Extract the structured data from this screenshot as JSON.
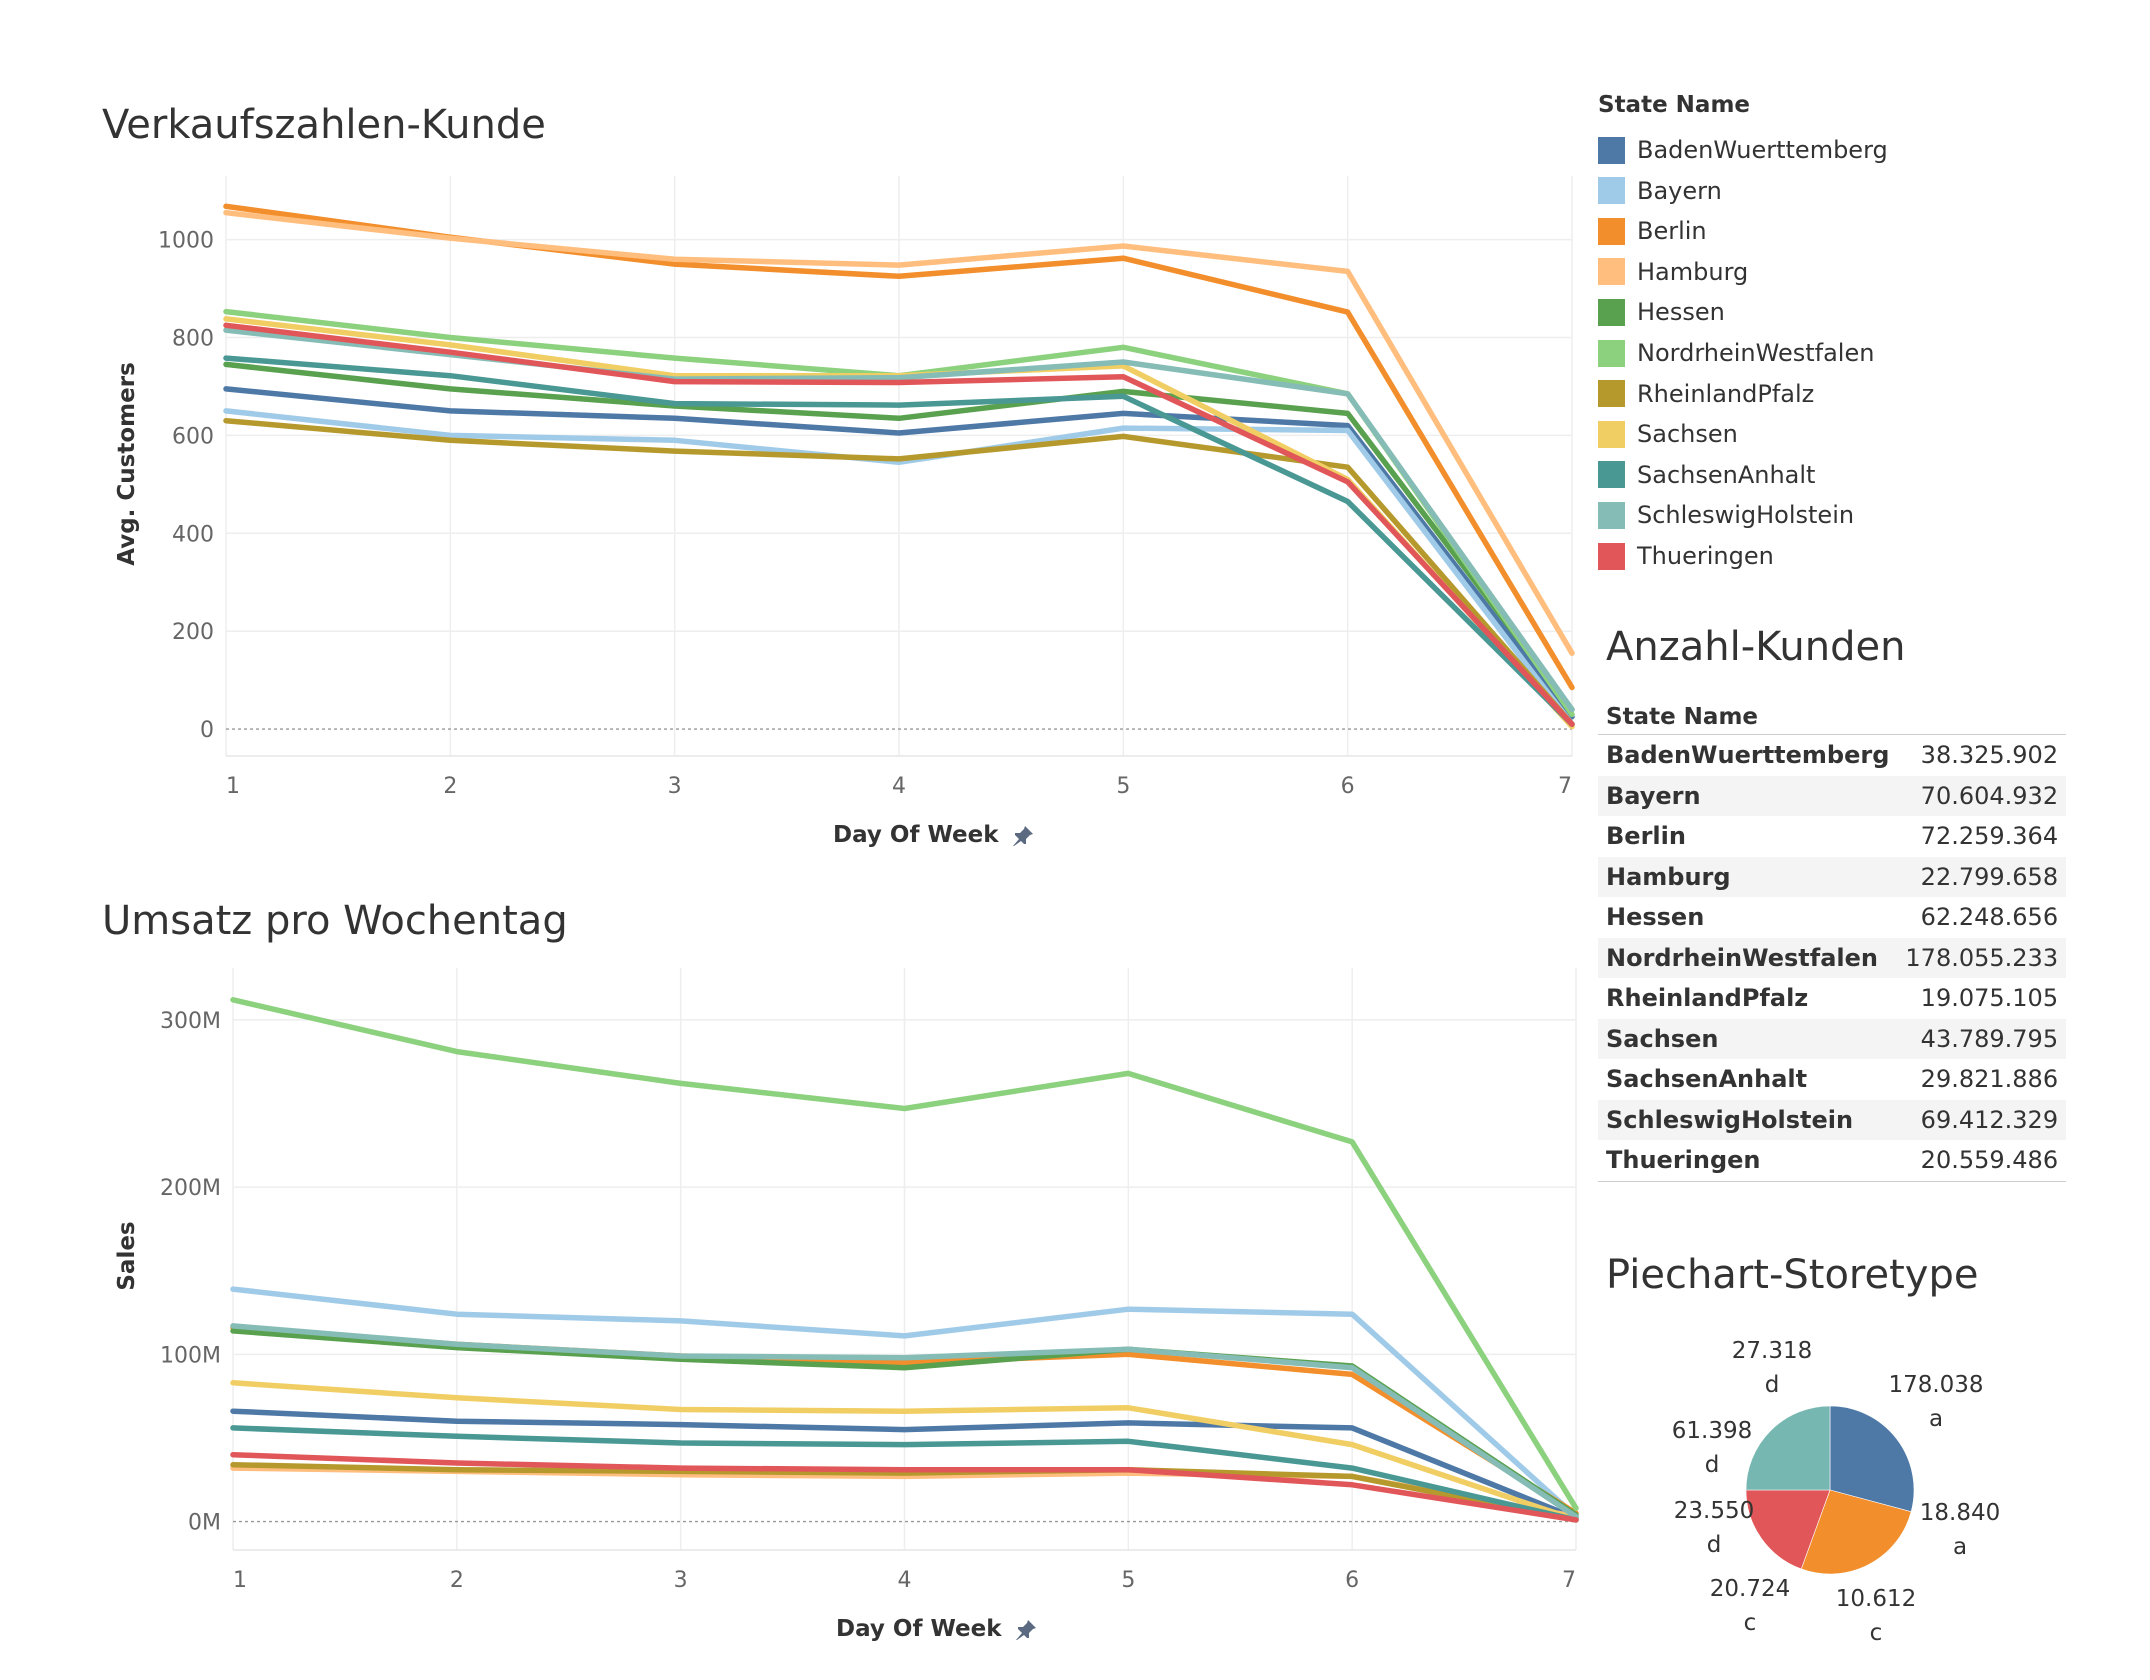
{
  "colors": {
    "BadenWuerttemberg": "#4e79a7",
    "Bayern": "#a0cbe8",
    "Berlin": "#f28e2b",
    "Hamburg": "#ffbe7d",
    "Hessen": "#59a14f",
    "NordrheinWestfalen": "#8cd17d",
    "RheinlandPfalz": "#b6992d",
    "Sachsen": "#f1ce63",
    "SachsenAnhalt": "#499894",
    "SchleswigHolstein": "#86bcb6",
    "Thueringen": "#e15759"
  },
  "legend": {
    "title": "State Name",
    "items": [
      "BadenWuerttemberg",
      "Bayern",
      "Berlin",
      "Hamburg",
      "Hessen",
      "NordrheinWestfalen",
      "RheinlandPfalz",
      "Sachsen",
      "SachsenAnhalt",
      "SchleswigHolstein",
      "Thueringen"
    ]
  },
  "table": {
    "title": "Anzahl-Kunden",
    "header": "State Name",
    "rows": [
      {
        "name": "BadenWuerttemberg",
        "value": "38.325.902"
      },
      {
        "name": "Bayern",
        "value": "70.604.932"
      },
      {
        "name": "Berlin",
        "value": "72.259.364"
      },
      {
        "name": "Hamburg",
        "value": "22.799.658"
      },
      {
        "name": "Hessen",
        "value": "62.248.656"
      },
      {
        "name": "NordrheinWestfalen",
        "value": "178.055.233"
      },
      {
        "name": "RheinlandPfalz",
        "value": "19.075.105"
      },
      {
        "name": "Sachsen",
        "value": "43.789.795"
      },
      {
        "name": "SachsenAnhalt",
        "value": "29.821.886"
      },
      {
        "name": "SchleswigHolstein",
        "value": "69.412.329"
      },
      {
        "name": "Thueringen",
        "value": "20.559.486"
      }
    ]
  },
  "pie_title": "Piechart-Storetype",
  "chart_data": [
    {
      "type": "line",
      "title": "Verkaufszahlen-Kunde",
      "xlabel": "Day Of Week",
      "ylabel": "Avg. Customers",
      "x": [
        1,
        2,
        3,
        4,
        5,
        6,
        7
      ],
      "ylim": [
        -55,
        1130
      ],
      "yticks": [
        0,
        200,
        400,
        600,
        800,
        1000
      ],
      "ytick_labels": [
        "0",
        "200",
        "400",
        "600",
        "800",
        "1000"
      ],
      "grid": true,
      "legend": "right",
      "series": [
        {
          "name": "BadenWuerttemberg",
          "values": [
            695,
            650,
            635,
            605,
            645,
            620,
            25
          ]
        },
        {
          "name": "Bayern",
          "values": [
            650,
            600,
            590,
            545,
            615,
            610,
            10
          ]
        },
        {
          "name": "Berlin",
          "values": [
            1068,
            1005,
            950,
            925,
            962,
            852,
            85
          ]
        },
        {
          "name": "Hamburg",
          "values": [
            1055,
            1003,
            960,
            948,
            987,
            935,
            155
          ]
        },
        {
          "name": "Hessen",
          "values": [
            745,
            695,
            660,
            635,
            690,
            645,
            40
          ]
        },
        {
          "name": "NordrheinWestfalen",
          "values": [
            853,
            800,
            758,
            722,
            780,
            685,
            30
          ]
        },
        {
          "name": "RheinlandPfalz",
          "values": [
            630,
            590,
            568,
            552,
            598,
            535,
            10
          ]
        },
        {
          "name": "Sachsen",
          "values": [
            838,
            785,
            722,
            722,
            742,
            510,
            5
          ]
        },
        {
          "name": "SachsenAnhalt",
          "values": [
            758,
            722,
            665,
            662,
            680,
            465,
            10
          ]
        },
        {
          "name": "SchleswigHolstein",
          "values": [
            815,
            765,
            715,
            718,
            750,
            685,
            40
          ]
        },
        {
          "name": "Thueringen",
          "values": [
            825,
            770,
            710,
            708,
            720,
            505,
            10
          ]
        }
      ]
    },
    {
      "type": "line",
      "title": "Umsatz pro Wochentag",
      "xlabel": "Day Of Week",
      "ylabel": "Sales",
      "x": [
        1,
        2,
        3,
        4,
        5,
        6,
        7
      ],
      "ylim": [
        -17000000,
        331000000
      ],
      "yticks": [
        0,
        100000000,
        200000000,
        300000000
      ],
      "ytick_labels": [
        "0M",
        "100M",
        "200M",
        "300M"
      ],
      "grid": true,
      "legend": "right",
      "series": [
        {
          "name": "BadenWuerttemberg",
          "values": [
            66000000,
            60000000,
            58000000,
            55000000,
            59000000,
            56000000,
            2000000
          ]
        },
        {
          "name": "Bayern",
          "values": [
            139000000,
            124000000,
            120000000,
            111000000,
            127000000,
            124000000,
            3000000
          ]
        },
        {
          "name": "Berlin",
          "values": [
            116000000,
            106000000,
            99000000,
            95000000,
            100000000,
            88000000,
            5000000
          ]
        },
        {
          "name": "Hamburg",
          "values": [
            32000000,
            30000000,
            28000000,
            27000000,
            29000000,
            27000000,
            3000000
          ]
        },
        {
          "name": "Hessen",
          "values": [
            114000000,
            104000000,
            97000000,
            92000000,
            103000000,
            93000000,
            4000000
          ]
        },
        {
          "name": "NordrheinWestfalen",
          "values": [
            312000000,
            281000000,
            262000000,
            247000000,
            268000000,
            227000000,
            8000000
          ]
        },
        {
          "name": "RheinlandPfalz",
          "values": [
            34000000,
            31000000,
            30000000,
            29000000,
            31000000,
            27000000,
            1000000
          ]
        },
        {
          "name": "Sachsen",
          "values": [
            83000000,
            74000000,
            67000000,
            66000000,
            68000000,
            46000000,
            1000000
          ]
        },
        {
          "name": "SachsenAnhalt",
          "values": [
            56000000,
            51000000,
            47000000,
            46000000,
            48000000,
            32000000,
            1000000
          ]
        },
        {
          "name": "SchleswigHolstein",
          "values": [
            117000000,
            106000000,
            99000000,
            98000000,
            103000000,
            92000000,
            3000000
          ]
        },
        {
          "name": "Thueringen",
          "values": [
            40000000,
            35000000,
            32000000,
            31000000,
            31000000,
            22000000,
            1000000
          ]
        }
      ]
    },
    {
      "type": "pie",
      "title": "Piechart-Storetype",
      "slices": [
        {
          "value": 178.038,
          "value_label": "178.038",
          "category": "a",
          "label": "178.038\na",
          "color": "#4e79a7"
        },
        {
          "value": 18.84,
          "value_label": "18.840",
          "category": "a",
          "label": "18.840\na",
          "color": "#f28e2b"
        },
        {
          "value": 10.612,
          "value_label": "10.612",
          "category": "c",
          "label": "10.612\nc",
          "color": "#f28e2b"
        },
        {
          "value": 20.724,
          "value_label": "20.724",
          "category": "c",
          "label": "20.724\nc",
          "color": "#e15759"
        },
        {
          "value": 23.55,
          "value_label": "23.550",
          "category": "d",
          "label": "23.550\nd",
          "color": "#e15759"
        },
        {
          "value": 61.398,
          "value_label": "61.398",
          "category": "d",
          "label": "61.398\nd",
          "color": "#76b7b2"
        },
        {
          "value": 27.318,
          "value_label": "27.318",
          "category": "d",
          "label": "27.318\nd",
          "color": "#76b7b2"
        }
      ],
      "slice_angles_deg": [
        0,
        105,
        165,
        200,
        235,
        270,
        360
      ]
    }
  ]
}
